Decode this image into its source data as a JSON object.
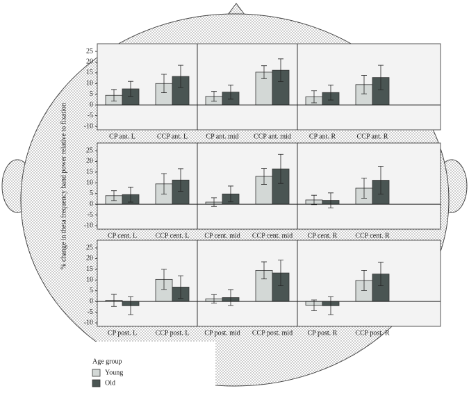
{
  "chart_data": {
    "type": "bar",
    "ylabel": "% change in theta frequency band power relative to fixation",
    "legend_title": "Age group",
    "series": [
      {
        "name": "Young",
        "color": "#d3d8d6"
      },
      {
        "name": "Old",
        "color": "#4a5553"
      }
    ],
    "ylim": [
      -10,
      25
    ],
    "yticks": [
      -10,
      -5,
      0,
      5,
      10,
      15,
      20,
      25
    ],
    "panels": [
      {
        "categories": [
          "CP ant. L",
          "CCP ant. L",
          "CP ant. mid",
          "CCP ant. mid",
          "CP ant. R",
          "CCP ant. R"
        ],
        "values": [
          [
            4.5,
            10,
            4,
            15.3,
            3.8,
            9.5
          ],
          [
            7.5,
            13.3,
            6,
            16.2,
            5.8,
            12.8
          ]
        ],
        "errors": [
          [
            2.7,
            4.3,
            2.3,
            3,
            2.8,
            4.3
          ],
          [
            3.5,
            5.2,
            3.3,
            5.3,
            3.5,
            5.7
          ]
        ]
      },
      {
        "categories": [
          "CP cent. L",
          "CCP cent. L",
          "CP cent. mid",
          "CCP cent. mid",
          "CP cent. R",
          "CCP cent. R"
        ],
        "values": [
          [
            4,
            9.5,
            1,
            13,
            2,
            7.5
          ],
          [
            4.5,
            11.3,
            4.8,
            16.5,
            1.8,
            11.2
          ]
        ],
        "errors": [
          [
            2.3,
            4.8,
            2,
            3.7,
            2.2,
            4.7
          ],
          [
            3.5,
            5.3,
            3.7,
            6.8,
            3.5,
            6.5
          ]
        ]
      },
      {
        "categories": [
          "CP post. L",
          "CCP post. L",
          "CP post. mid",
          "CCP post. mid",
          "CP post. R",
          "CCP post. R"
        ],
        "values": [
          [
            0.5,
            10.3,
            1.2,
            14.5,
            -1.8,
            9.8
          ],
          [
            -2,
            6.7,
            1.8,
            13.3,
            -2,
            12.8
          ]
        ],
        "errors": [
          [
            2.8,
            4.7,
            2,
            4,
            2.5,
            4.7
          ],
          [
            4.2,
            5.3,
            3.7,
            6,
            4.2,
            5.5
          ]
        ]
      }
    ]
  }
}
